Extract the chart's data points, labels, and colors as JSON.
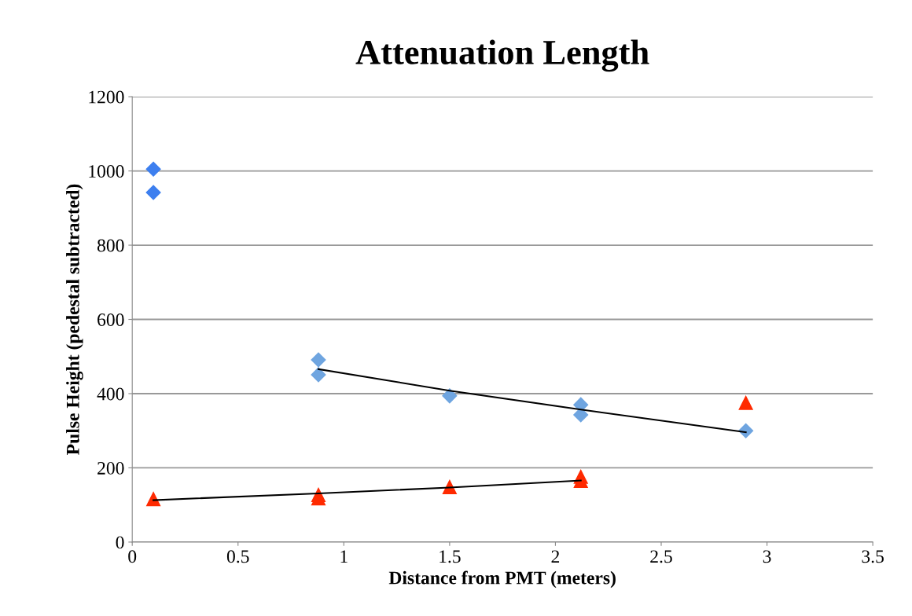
{
  "chart_data": {
    "type": "scatter",
    "title": "Attenuation Length",
    "xlabel": "Distance from PMT (meters)",
    "ylabel": "Pulse Height (pedestal subtracted)",
    "xlim": [
      0,
      3.5
    ],
    "xticks": [
      0,
      0.5,
      1,
      1.5,
      2,
      2.5,
      3,
      3.5
    ],
    "ylim": [
      0,
      1200
    ],
    "yticks": [
      0,
      200,
      400,
      600,
      800,
      1000,
      1200
    ],
    "grid": "y",
    "legend": false,
    "series": [
      {
        "marker": "diamond",
        "color": "#3d7fef",
        "x": [
          0.1,
          0.1
        ],
        "values": [
          1005,
          942
        ]
      },
      {
        "marker": "diamond",
        "color": "#6fa5e0",
        "x": [
          0.88,
          0.88,
          1.5,
          2.12,
          2.12,
          2.9
        ],
        "values": [
          491,
          451,
          394,
          370,
          343,
          300
        ]
      },
      {
        "marker": "triangle",
        "color": "#ff2a00",
        "x": [
          0.1,
          0.88,
          0.88,
          1.5,
          2.12,
          2.12,
          2.9
        ],
        "values": [
          116,
          118,
          127,
          148,
          176,
          165,
          375
        ]
      },
      {
        "type": "line",
        "marker": "none",
        "color": "#000000",
        "x": [
          0.88,
          1.5,
          2.12,
          2.9
        ],
        "values": [
          466,
          408,
          357,
          296
        ]
      },
      {
        "type": "line",
        "marker": "none",
        "color": "#000000",
        "x": [
          0.1,
          0.88,
          1.5,
          2.12
        ],
        "values": [
          113,
          131,
          147,
          166
        ]
      }
    ]
  }
}
